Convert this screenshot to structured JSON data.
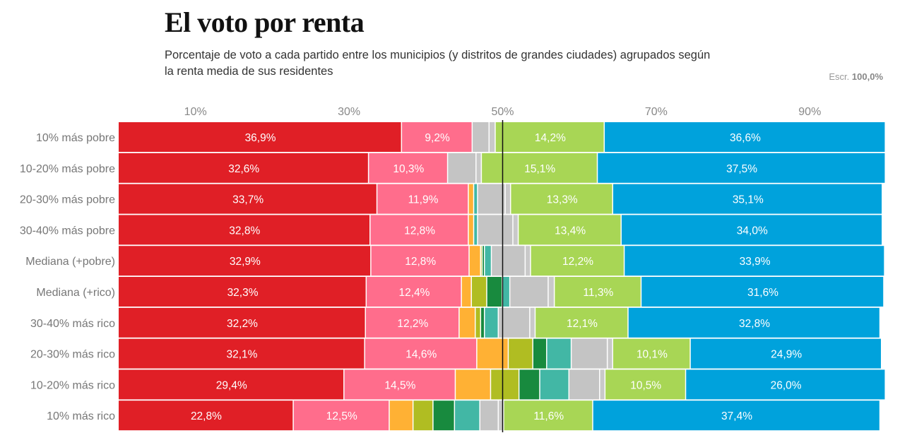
{
  "title": "El voto por renta",
  "subtitle": "Porcentaje de voto a cada partido entre los municipios (y distritos de grandes ciudades) agrupados según la renta media de sus residentes",
  "scale": {
    "label": "Escr.",
    "value": "100,0%"
  },
  "chart_data": {
    "type": "bar",
    "orientation": "horizontal",
    "stacked": true,
    "xlim": [
      0,
      100
    ],
    "x_ticks": [
      "10%",
      "30%",
      "50%",
      "70%",
      "90%"
    ],
    "x_tick_values": [
      10,
      30,
      50,
      70,
      90
    ],
    "reference_line": 50,
    "series_colors": [
      "#e01f26",
      "#ff6d8c",
      "#ffb134",
      "#b0bd22",
      "#188a3e",
      "#42b7a5",
      "#c4c4c4",
      "#c9c9c9",
      "#a8d655",
      "#00a2dc"
    ],
    "labeled_series": [
      0,
      1,
      8,
      9
    ],
    "categories": [
      "10% más pobre",
      "10-20% más pobre",
      "20-30% más pobre",
      "30-40% más pobre",
      "Mediana (+pobre)",
      "Mediana (+rico)",
      "30-40% más rico",
      "20-30% más rico",
      "10-20% más rico",
      "10% más rico"
    ],
    "values": [
      [
        36.9,
        9.2,
        0,
        0,
        0,
        0,
        2.2,
        0.8,
        14.2,
        36.6
      ],
      [
        32.6,
        10.3,
        0,
        0,
        0,
        0,
        3.7,
        0.7,
        15.1,
        37.5
      ],
      [
        33.7,
        11.9,
        0.7,
        0,
        0,
        0.5,
        3.6,
        0.7,
        13.3,
        35.1
      ],
      [
        32.8,
        12.8,
        0.7,
        0,
        0,
        0.5,
        4.6,
        0.7,
        13.4,
        34.0
      ],
      [
        32.9,
        12.8,
        1.5,
        0.2,
        0.3,
        0.9,
        4.4,
        0.7,
        12.2,
        33.9
      ],
      [
        32.3,
        12.4,
        1.3,
        2.0,
        2.0,
        1.0,
        5.0,
        0.8,
        11.3,
        31.6
      ],
      [
        32.2,
        12.2,
        2.1,
        0.7,
        0.5,
        1.8,
        4.1,
        0.7,
        12.1,
        32.8
      ],
      [
        32.1,
        14.6,
        4.1,
        3.2,
        1.8,
        3.2,
        4.7,
        0.7,
        10.1,
        24.9
      ],
      [
        29.4,
        14.5,
        4.6,
        3.7,
        2.7,
        3.8,
        4.0,
        0.7,
        10.5,
        26.0
      ],
      [
        22.8,
        12.5,
        3.1,
        2.6,
        2.8,
        3.3,
        2.4,
        0.7,
        11.6,
        37.4
      ]
    ]
  }
}
